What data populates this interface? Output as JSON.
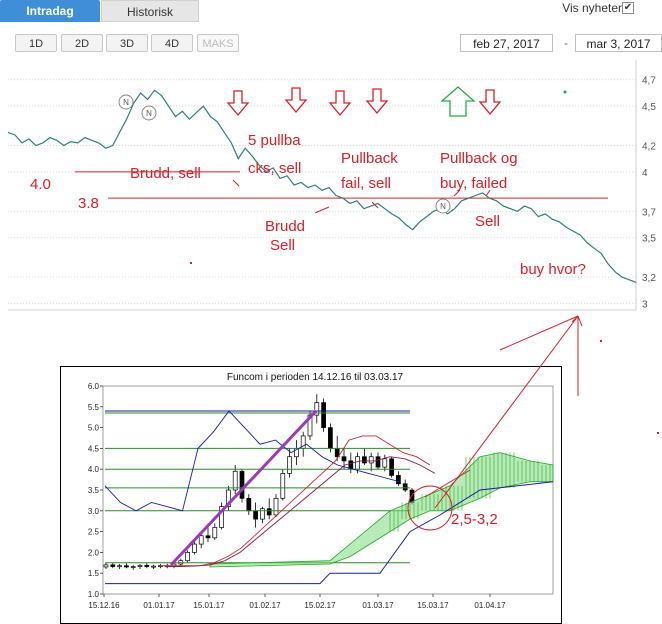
{
  "tabs": [
    {
      "label": "Intradag",
      "active": true
    },
    {
      "label": "Historisk",
      "active": false
    }
  ],
  "news_toggle": {
    "label": "Vis nyheter",
    "checked": true,
    "mark": "✔"
  },
  "period_buttons": [
    "1D",
    "2D",
    "3D",
    "4D",
    "MAKS"
  ],
  "date_range": {
    "from": "feb 27, 2017",
    "separator": "-",
    "to": "mar 3, 2017"
  },
  "colors": {
    "accent": "#3f8fd8",
    "price_line": "#2e7d7d",
    "annotation": "#d62027",
    "up_arrow": "#2aa84a"
  },
  "chart_data": [
    {
      "type": "line",
      "title": "",
      "xlabel": "",
      "ylabel": "",
      "ylim": [
        2.95,
        4.85
      ],
      "y_ticks": [
        "4,7",
        "4,5",
        "4,2",
        "4",
        "3,7",
        "3,5",
        "3,2",
        "3"
      ],
      "grid": true,
      "series": [
        {
          "values": [
            4.3,
            4.28,
            4.22,
            4.25,
            4.2,
            4.22,
            4.26,
            4.24,
            4.2,
            4.23,
            4.22,
            4.26,
            4.24,
            4.22,
            4.18,
            4.2,
            4.3,
            4.4,
            4.52,
            4.6,
            4.55,
            4.62,
            4.58,
            4.5,
            4.42,
            4.46,
            4.4,
            4.45,
            4.5,
            4.42,
            4.38,
            4.3,
            4.22,
            4.1,
            4.18,
            4.12,
            4.05,
            4.0,
            4.03,
            3.95,
            3.97,
            3.9,
            3.92,
            3.88,
            3.9,
            3.86,
            3.88,
            3.82,
            3.8,
            3.76,
            3.78,
            3.72,
            3.74,
            3.76,
            3.72,
            3.68,
            3.65,
            3.6,
            3.56,
            3.62,
            3.66,
            3.7,
            3.72,
            3.68,
            3.72,
            3.78,
            3.8,
            3.82,
            3.84,
            3.8,
            3.78,
            3.74,
            3.72,
            3.7,
            3.74,
            3.72,
            3.66,
            3.68,
            3.64,
            3.62,
            3.58,
            3.55,
            3.52,
            3.46,
            3.42,
            3.38,
            3.3,
            3.24,
            3.2,
            3.18,
            3.16
          ]
        }
      ],
      "level_lines": [
        {
          "label": "4.0",
          "value": 4.0
        },
        {
          "label": "3.8",
          "value": 3.8
        }
      ],
      "news_markers": [
        "N",
        "N",
        "N"
      ],
      "annotations": [
        {
          "text": "Brudd, sell"
        },
        {
          "text": "5 pullba"
        },
        {
          "text": "cks, sell"
        },
        {
          "text": "Pullback"
        },
        {
          "text": "fail, sell"
        },
        {
          "text": "Pullback og"
        },
        {
          "text": "buy, failed"
        },
        {
          "text": "Brudd"
        },
        {
          "text": "Sell"
        },
        {
          "text": "Sell"
        },
        {
          "text": "buy hvor?"
        }
      ]
    },
    {
      "type": "line",
      "title": "Funcom i perioden 14.12.16 til 03.03.17",
      "xlabel": "",
      "ylabel": "",
      "ylim": [
        1.0,
        6.0
      ],
      "y_ticks": [
        "6.0",
        "5.5",
        "5.0",
        "4.5",
        "4.0",
        "3.5",
        "3.0",
        "2.5",
        "2.0",
        "1.5",
        "1.0"
      ],
      "x_ticks": [
        "15.12.16",
        "01.01.17",
        "15.01.17",
        "01.02.17",
        "15.02.17",
        "01.03.17",
        "15.03.17",
        "01.04.17"
      ],
      "candles": [
        {
          "o": 1.65,
          "h": 1.75,
          "l": 1.6,
          "c": 1.7
        },
        {
          "o": 1.7,
          "h": 1.75,
          "l": 1.62,
          "c": 1.66
        },
        {
          "o": 1.66,
          "h": 1.72,
          "l": 1.6,
          "c": 1.68
        },
        {
          "o": 1.68,
          "h": 1.74,
          "l": 1.62,
          "c": 1.65
        },
        {
          "o": 1.65,
          "h": 1.7,
          "l": 1.58,
          "c": 1.66
        },
        {
          "o": 1.66,
          "h": 1.72,
          "l": 1.6,
          "c": 1.69
        },
        {
          "o": 1.69,
          "h": 1.74,
          "l": 1.62,
          "c": 1.66
        },
        {
          "o": 1.66,
          "h": 1.7,
          "l": 1.6,
          "c": 1.67
        },
        {
          "o": 1.67,
          "h": 1.72,
          "l": 1.62,
          "c": 1.68
        },
        {
          "o": 1.68,
          "h": 1.73,
          "l": 1.62,
          "c": 1.66
        },
        {
          "o": 1.66,
          "h": 1.75,
          "l": 1.62,
          "c": 1.72
        },
        {
          "o": 1.72,
          "h": 1.85,
          "l": 1.68,
          "c": 1.8
        },
        {
          "o": 1.8,
          "h": 2.05,
          "l": 1.76,
          "c": 2.0
        },
        {
          "o": 2.0,
          "h": 2.3,
          "l": 1.95,
          "c": 2.2
        },
        {
          "o": 2.2,
          "h": 2.5,
          "l": 2.1,
          "c": 2.4
        },
        {
          "o": 2.4,
          "h": 2.6,
          "l": 2.25,
          "c": 2.35
        },
        {
          "o": 2.35,
          "h": 2.7,
          "l": 2.3,
          "c": 2.6
        },
        {
          "o": 2.6,
          "h": 3.2,
          "l": 2.55,
          "c": 3.1
        },
        {
          "o": 3.1,
          "h": 3.6,
          "l": 3.0,
          "c": 3.5
        },
        {
          "o": 3.5,
          "h": 4.1,
          "l": 3.4,
          "c": 3.95
        },
        {
          "o": 3.95,
          "h": 4.0,
          "l": 3.2,
          "c": 3.3
        },
        {
          "o": 3.3,
          "h": 3.4,
          "l": 2.9,
          "c": 3.0
        },
        {
          "o": 3.0,
          "h": 3.2,
          "l": 2.6,
          "c": 2.8
        },
        {
          "o": 2.8,
          "h": 3.1,
          "l": 2.7,
          "c": 3.05
        },
        {
          "o": 3.05,
          "h": 3.3,
          "l": 2.8,
          "c": 2.9
        },
        {
          "o": 2.9,
          "h": 3.4,
          "l": 2.85,
          "c": 3.3
        },
        {
          "o": 3.3,
          "h": 4.0,
          "l": 3.25,
          "c": 3.9
        },
        {
          "o": 3.9,
          "h": 4.5,
          "l": 3.8,
          "c": 4.3
        },
        {
          "o": 4.3,
          "h": 4.7,
          "l": 4.1,
          "c": 4.5
        },
        {
          "o": 4.5,
          "h": 4.9,
          "l": 4.3,
          "c": 4.8
        },
        {
          "o": 4.8,
          "h": 5.4,
          "l": 4.7,
          "c": 5.3
        },
        {
          "o": 5.3,
          "h": 5.8,
          "l": 5.1,
          "c": 5.6
        },
        {
          "o": 5.6,
          "h": 5.7,
          "l": 4.9,
          "c": 5.0
        },
        {
          "o": 5.0,
          "h": 5.1,
          "l": 4.4,
          "c": 4.5
        },
        {
          "o": 4.5,
          "h": 4.8,
          "l": 4.2,
          "c": 4.3
        },
        {
          "o": 4.3,
          "h": 4.5,
          "l": 4.0,
          "c": 4.2
        },
        {
          "o": 4.2,
          "h": 4.4,
          "l": 3.9,
          "c": 4.0
        },
        {
          "o": 4.0,
          "h": 4.4,
          "l": 3.9,
          "c": 4.3
        },
        {
          "o": 4.3,
          "h": 4.5,
          "l": 4.1,
          "c": 4.15
        },
        {
          "o": 4.15,
          "h": 4.4,
          "l": 3.95,
          "c": 4.3
        },
        {
          "o": 4.3,
          "h": 4.4,
          "l": 4.0,
          "c": 4.05
        },
        {
          "o": 4.05,
          "h": 4.35,
          "l": 3.95,
          "c": 4.25
        },
        {
          "o": 4.25,
          "h": 4.3,
          "l": 3.8,
          "c": 3.85
        },
        {
          "o": 3.85,
          "h": 3.95,
          "l": 3.6,
          "c": 3.65
        },
        {
          "o": 3.65,
          "h": 3.75,
          "l": 3.45,
          "c": 3.5
        },
        {
          "o": 3.5,
          "h": 3.55,
          "l": 3.15,
          "c": 3.2
        }
      ],
      "lines": [
        {
          "color": "#1a1aa8",
          "values": [
            3.6,
            3.2,
            3.0,
            3.2,
            3.1,
            3.0,
            4.5,
            4.9,
            5.4,
            5.0,
            4.6,
            4.7,
            4.4,
            4.6,
            4.3,
            4.1,
            4.0,
            3.9,
            3.8,
            3.7
          ]
        },
        {
          "color": "#c8282d",
          "values": [
            1.68,
            1.68,
            1.68,
            1.68,
            1.75,
            1.9,
            2.1,
            2.4,
            2.7,
            3.0,
            3.3,
            3.6,
            3.9,
            4.2,
            4.7,
            4.8,
            4.8,
            4.6,
            4.4,
            4.3,
            4.1
          ]
        },
        {
          "color": "#8a1a4a",
          "values": [
            1.66,
            1.66,
            1.67,
            1.7,
            1.8,
            2.0,
            2.3,
            2.6,
            2.9,
            3.2,
            3.5,
            3.8,
            4.1,
            4.2,
            4.2,
            4.3,
            4.25,
            4.1,
            3.9
          ]
        }
      ],
      "horizontal_levels": [
        5.4,
        5.35,
        4.5,
        4.0,
        3.55,
        3.0,
        1.75
      ],
      "cloud_projection": {
        "tenkan": 3.0,
        "kijun": 4.5,
        "span_a_end": 4.2,
        "span_b_end": 3.7
      },
      "annotations": [
        {
          "text": "2,5-3,2"
        }
      ]
    }
  ]
}
